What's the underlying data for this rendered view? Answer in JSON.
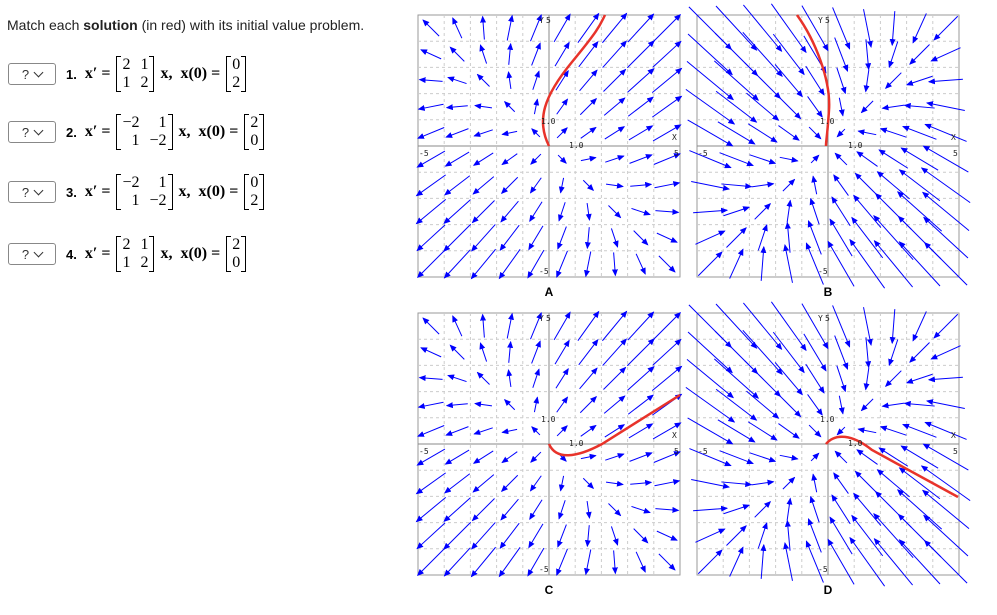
{
  "instruction": {
    "before": "Match each ",
    "bold": "solution",
    "after": " (in red) with its initial value problem."
  },
  "problems": [
    {
      "select": "?",
      "number": "1.",
      "lhs": "x′ =",
      "matrix": [
        [
          "2",
          "1"
        ],
        [
          "1",
          "2"
        ]
      ],
      "mid": "x,  x(0) =",
      "initial": [
        "0",
        "2"
      ]
    },
    {
      "select": "?",
      "number": "2.",
      "lhs": "x′ =",
      "matrix": [
        [
          "−2",
          "1"
        ],
        [
          "1",
          "−2"
        ]
      ],
      "mid": "x,  x(0) =",
      "initial": [
        "2",
        "0"
      ]
    },
    {
      "select": "?",
      "number": "3.",
      "lhs": "x′ =",
      "matrix": [
        [
          "−2",
          "1"
        ],
        [
          "1",
          "−2"
        ]
      ],
      "mid": "x,  x(0) =",
      "initial": [
        "0",
        "2"
      ]
    },
    {
      "select": "?",
      "number": "4.",
      "lhs": "x′ =",
      "matrix": [
        [
          "2",
          "1"
        ],
        [
          "1",
          "2"
        ]
      ],
      "mid": "x,  x(0) =",
      "initial": [
        "2",
        "0"
      ]
    }
  ],
  "plots": [
    {
      "label": "A",
      "axes": {
        "y": "Y",
        "x": "X",
        "top": "5",
        "bottom": "-5",
        "left": "-5",
        "right": "5",
        "tick": "1.0"
      }
    },
    {
      "label": "B",
      "axes": {
        "y": "Y",
        "x": "X",
        "top": "5",
        "bottom": "-5",
        "left": "-5",
        "right": "5",
        "tick": "1.0"
      }
    },
    {
      "label": "C",
      "axes": {
        "y": "Y",
        "x": "X",
        "top": "5",
        "bottom": "-5",
        "left": "-5",
        "right": "5",
        "tick": "1.0"
      }
    },
    {
      "label": "D",
      "axes": {
        "y": "Y",
        "x": "X",
        "top": "5",
        "bottom": "-5",
        "left": "-5",
        "right": "5",
        "tick": "1.0"
      }
    }
  ]
}
